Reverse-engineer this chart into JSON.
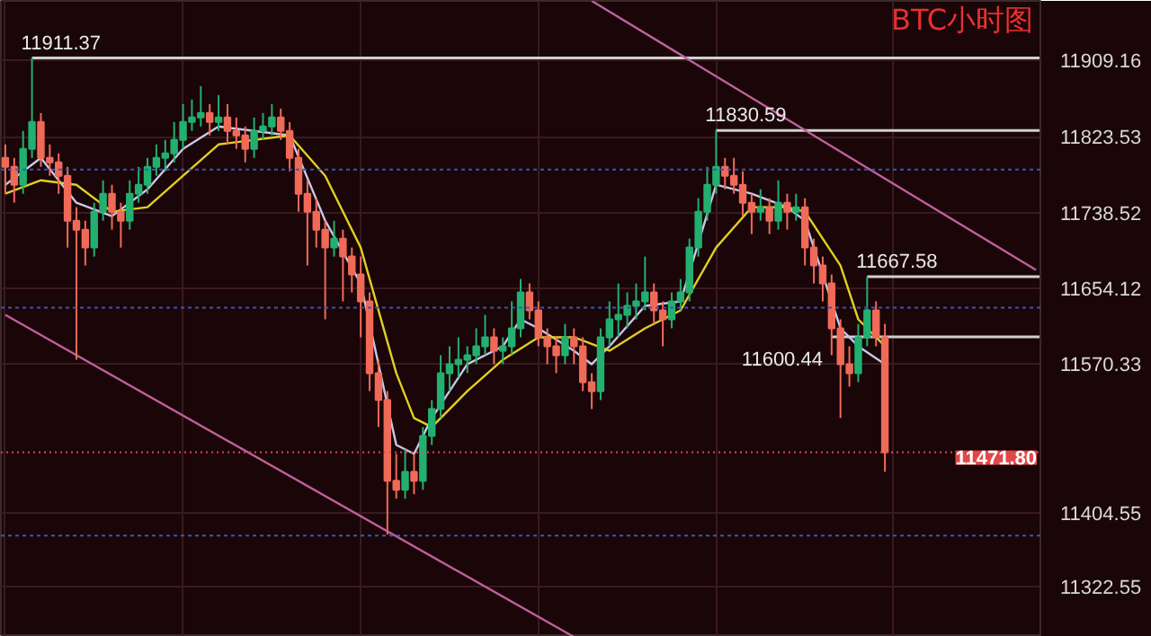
{
  "chart_data": {
    "type": "candlestick",
    "title": "BTC小时图",
    "categories": [
      null,
      null,
      null,
      null,
      null,
      null,
      null,
      null,
      null,
      null,
      null,
      null,
      null,
      null,
      null,
      null,
      null,
      null,
      null,
      null,
      null,
      null,
      null,
      null,
      null,
      null,
      null,
      null,
      null,
      null,
      null,
      null,
      null,
      null,
      null,
      null,
      null,
      null,
      null,
      null,
      null,
      null,
      null,
      null,
      null,
      null,
      null,
      null,
      null,
      null,
      null,
      null,
      null,
      null,
      null,
      null,
      null,
      null,
      null,
      null,
      null,
      null,
      null,
      null,
      null,
      null,
      null,
      null,
      null,
      null,
      null,
      null,
      null,
      null,
      null,
      null,
      null,
      null,
      null,
      null,
      null,
      null,
      null,
      null,
      null,
      null,
      null,
      null,
      null,
      null,
      null,
      null,
      null,
      null,
      null,
      null,
      null,
      null,
      null,
      null,
      null,
      null,
      null,
      null,
      null,
      null,
      null,
      null,
      null,
      null,
      null,
      null,
      null,
      null,
      null,
      null,
      null
    ],
    "ohlc": [
      [
        11800,
        11815,
        11760,
        11790
      ],
      [
        11790,
        11800,
        11750,
        11770
      ],
      [
        11770,
        11830,
        11760,
        11810
      ],
      [
        11810,
        11911.37,
        11800,
        11840
      ],
      [
        11840,
        11850,
        11790,
        11800
      ],
      [
        11800,
        11815,
        11780,
        11795
      ],
      [
        11795,
        11805,
        11760,
        11780
      ],
      [
        11780,
        11790,
        11700,
        11730
      ],
      [
        11730,
        11745,
        11575,
        11720
      ],
      [
        11720,
        11730,
        11680,
        11700
      ],
      [
        11700,
        11750,
        11690,
        11740
      ],
      [
        11740,
        11775,
        11730,
        11760
      ],
      [
        11760,
        11770,
        11720,
        11740
      ],
      [
        11740,
        11750,
        11700,
        11730
      ],
      [
        11730,
        11775,
        11720,
        11760
      ],
      [
        11760,
        11790,
        11750,
        11770
      ],
      [
        11770,
        11800,
        11760,
        11790
      ],
      [
        11790,
        11815,
        11780,
        11800
      ],
      [
        11800,
        11820,
        11785,
        11805
      ],
      [
        11805,
        11840,
        11795,
        11820
      ],
      [
        11820,
        11860,
        11810,
        11840
      ],
      [
        11840,
        11865,
        11830,
        11845
      ],
      [
        11845,
        11880,
        11835,
        11850
      ],
      [
        11850,
        11860,
        11825,
        11840
      ],
      [
        11840,
        11870,
        11830,
        11845
      ],
      [
        11845,
        11860,
        11815,
        11830
      ],
      [
        11830,
        11845,
        11810,
        11825
      ],
      [
        11825,
        11835,
        11795,
        11810
      ],
      [
        11810,
        11845,
        11800,
        11830
      ],
      [
        11830,
        11850,
        11820,
        11835
      ],
      [
        11835,
        11860,
        11825,
        11845
      ],
      [
        11845,
        11855,
        11820,
        11830
      ],
      [
        11830,
        11840,
        11785,
        11800
      ],
      [
        11800,
        11810,
        11740,
        11760
      ],
      [
        11760,
        11775,
        11680,
        11740
      ],
      [
        11740,
        11755,
        11700,
        11720
      ],
      [
        11720,
        11730,
        11620,
        11700
      ],
      [
        11700,
        11730,
        11690,
        11710
      ],
      [
        11710,
        11720,
        11640,
        11690
      ],
      [
        11690,
        11700,
        11650,
        11670
      ],
      [
        11670,
        11690,
        11600,
        11640
      ],
      [
        11640,
        11650,
        11540,
        11560
      ],
      [
        11560,
        11575,
        11500,
        11530
      ],
      [
        11530,
        11540,
        11380,
        11440
      ],
      [
        11440,
        11470,
        11420,
        11430
      ],
      [
        11430,
        11475,
        11420,
        11450
      ],
      [
        11450,
        11470,
        11425,
        11440
      ],
      [
        11440,
        11500,
        11430,
        11490
      ],
      [
        11490,
        11530,
        11480,
        11520
      ],
      [
        11520,
        11580,
        11510,
        11560
      ],
      [
        11560,
        11590,
        11540,
        11570
      ],
      [
        11570,
        11600,
        11555,
        11575
      ],
      [
        11575,
        11590,
        11560,
        11580
      ],
      [
        11580,
        11610,
        11570,
        11590
      ],
      [
        11590,
        11625,
        11580,
        11600
      ],
      [
        11600,
        11610,
        11570,
        11585
      ],
      [
        11585,
        11600,
        11570,
        11590
      ],
      [
        11590,
        11640,
        11580,
        11610
      ],
      [
        11610,
        11665,
        11600,
        11650
      ],
      [
        11650,
        11660,
        11620,
        11630
      ],
      [
        11630,
        11640,
        11590,
        11600
      ],
      [
        11600,
        11610,
        11570,
        11590
      ],
      [
        11590,
        11600,
        11560,
        11580
      ],
      [
        11580,
        11615,
        11570,
        11600
      ],
      [
        11600,
        11610,
        11570,
        11590
      ],
      [
        11590,
        11600,
        11540,
        11550
      ],
      [
        11550,
        11560,
        11520,
        11540
      ],
      [
        11540,
        11610,
        11530,
        11600
      ],
      [
        11600,
        11640,
        11590,
        11620
      ],
      [
        11620,
        11660,
        11600,
        11625
      ],
      [
        11625,
        11650,
        11610,
        11635
      ],
      [
        11635,
        11660,
        11620,
        11640
      ],
      [
        11640,
        11690,
        11630,
        11650
      ],
      [
        11650,
        11660,
        11615,
        11630
      ],
      [
        11630,
        11640,
        11590,
        11620
      ],
      [
        11620,
        11650,
        11610,
        11640
      ],
      [
        11640,
        11665,
        11630,
        11650
      ],
      [
        11650,
        11710,
        11640,
        11700
      ],
      [
        11700,
        11755,
        11690,
        11740
      ],
      [
        11740,
        11790,
        11730,
        11770
      ],
      [
        11770,
        11830.59,
        11760,
        11790
      ],
      [
        11790,
        11800,
        11765,
        11780
      ],
      [
        11780,
        11800,
        11760,
        11770
      ],
      [
        11770,
        11785,
        11735,
        11750
      ],
      [
        11750,
        11760,
        11715,
        11740
      ],
      [
        11740,
        11765,
        11730,
        11745
      ],
      [
        11745,
        11755,
        11715,
        11730
      ],
      [
        11730,
        11775,
        11720,
        11750
      ],
      [
        11750,
        11760,
        11720,
        11740
      ],
      [
        11740,
        11760,
        11730,
        11745
      ],
      [
        11745,
        11755,
        11680,
        11700
      ],
      [
        11700,
        11710,
        11660,
        11680
      ],
      [
        11680,
        11690,
        11640,
        11660
      ],
      [
        11660,
        11670,
        11580,
        11610
      ],
      [
        11610,
        11620,
        11510,
        11570
      ],
      [
        11570,
        11590,
        11545,
        11560
      ],
      [
        11560,
        11615,
        11550,
        11600
      ],
      [
        11600,
        11667.58,
        11590,
        11630
      ],
      [
        11630,
        11640,
        11590,
        11600
      ],
      [
        11600,
        11615,
        11450,
        11471.8
      ],
      null,
      null,
      null,
      null,
      null,
      null,
      null,
      null,
      null,
      null,
      null,
      null,
      null,
      null,
      null,
      null,
      null
    ],
    "series": [
      {
        "type": "line",
        "color": "#c8c8e8",
        "values": [
          11770,
          null,
          null,
          null,
          11800,
          null,
          null,
          null,
          11750,
          null,
          null,
          null,
          11735,
          null,
          null,
          null,
          11765,
          null,
          null,
          null,
          11810,
          null,
          null,
          null,
          11835,
          null,
          null,
          null,
          11830,
          null,
          null,
          null,
          11825,
          null,
          null,
          null,
          11730,
          null,
          null,
          null,
          11660,
          null,
          null,
          null,
          11480,
          null,
          11470,
          null,
          11510,
          null,
          null,
          null,
          11570,
          null,
          null,
          null,
          11590,
          null,
          11620,
          null,
          11610,
          null,
          null,
          null,
          11585,
          null,
          11570,
          null,
          11590,
          null,
          null,
          null,
          11635,
          null,
          null,
          null,
          11640,
          null,
          null,
          null,
          11770,
          null,
          null,
          null,
          11760,
          null,
          null,
          null,
          11745,
          null,
          11730,
          null,
          null,
          null,
          11610,
          null,
          11590,
          null,
          null,
          11570,
          null,
          null,
          null,
          null,
          null,
          null,
          null,
          null,
          null,
          null,
          null,
          null,
          null,
          null,
          null,
          null,
          null
        ]
      },
      {
        "type": "line",
        "color": "#e0d020",
        "values": [
          11760,
          null,
          null,
          null,
          11775,
          null,
          null,
          null,
          11770,
          null,
          null,
          null,
          11740,
          null,
          null,
          null,
          11745,
          null,
          null,
          null,
          11780,
          null,
          null,
          null,
          11815,
          null,
          null,
          null,
          11820,
          null,
          null,
          null,
          11825,
          null,
          null,
          null,
          11780,
          null,
          null,
          null,
          11700,
          null,
          null,
          null,
          11560,
          null,
          11510,
          null,
          11500,
          null,
          null,
          null,
          11540,
          null,
          null,
          null,
          11575,
          null,
          null,
          null,
          11600,
          null,
          null,
          null,
          11600,
          null,
          null,
          null,
          11585,
          null,
          null,
          null,
          11610,
          null,
          null,
          null,
          11630,
          null,
          null,
          null,
          11700,
          null,
          null,
          null,
          11745,
          null,
          null,
          null,
          11745,
          null,
          11740,
          null,
          null,
          null,
          11680,
          null,
          11620,
          null,
          null,
          11590,
          null,
          null,
          null,
          null,
          null,
          null,
          null,
          null,
          null,
          null,
          null,
          null,
          null,
          null,
          null,
          null,
          null
        ]
      },
      {
        "type": "line",
        "color": "#c0609c",
        "values": [
          null,
          null,
          null,
          null,
          null,
          null,
          null,
          null,
          null,
          null,
          null,
          null,
          null,
          null,
          null,
          null,
          null,
          null,
          null,
          null,
          null,
          null,
          null,
          null,
          null,
          null,
          null,
          null,
          null,
          null,
          null,
          null,
          null,
          null,
          null,
          null,
          null,
          null,
          null,
          null,
          null,
          null,
          null,
          null,
          null,
          null,
          null,
          null,
          null,
          null,
          null,
          null,
          null,
          null,
          null,
          null,
          null,
          null,
          null,
          null,
          null,
          null,
          null,
          null,
          null,
          null,
          11975,
          null,
          null,
          null,
          null,
          null,
          null,
          null,
          null,
          null,
          null,
          null,
          null,
          null,
          null,
          null,
          null,
          null,
          null,
          null,
          null,
          null,
          null,
          null,
          null,
          null,
          null,
          null,
          null,
          null,
          null,
          null,
          null,
          null,
          null,
          null,
          null,
          null,
          null,
          null,
          null,
          null,
          null,
          null,
          null,
          null,
          null,
          null,
          null,
          null,
          11675
        ]
      },
      {
        "type": "line",
        "color": "#c0609c",
        "values": [
          11625,
          null,
          null,
          null,
          null,
          null,
          null,
          null,
          null,
          null,
          null,
          null,
          null,
          null,
          null,
          null,
          null,
          null,
          null,
          null,
          null,
          null,
          null,
          null,
          null,
          null,
          null,
          null,
          null,
          null,
          null,
          null,
          null,
          null,
          null,
          null,
          null,
          null,
          null,
          null,
          null,
          null,
          null,
          null,
          null,
          null,
          null,
          null,
          null,
          null,
          null,
          null,
          null,
          null,
          null,
          null,
          null,
          null,
          null,
          null,
          null,
          null,
          null,
          null,
          11266,
          null,
          null,
          null,
          null,
          null,
          null,
          null,
          null,
          null,
          null,
          null,
          null,
          null,
          null,
          null,
          null,
          null,
          null,
          null,
          null,
          null,
          null,
          null,
          null,
          null,
          null,
          null,
          null,
          null,
          null,
          null,
          null,
          null,
          null,
          null,
          null,
          null,
          null,
          null,
          null,
          null,
          null,
          null,
          null,
          null,
          null,
          null,
          null,
          null,
          null,
          null,
          null
        ]
      }
    ],
    "ylim": [
      11266,
      11975
    ],
    "yticks": [
      11322.55,
      11404.55,
      11570.33,
      11654.12,
      11738.52,
      11823.53,
      11909.16
    ],
    "grid": true,
    "ref_lines": [
      {
        "axis": "y",
        "value": 11787,
        "color": "#3858b0",
        "line_style": "dashed",
        "label": null
      },
      {
        "axis": "y",
        "value": 11633,
        "color": "#3858b0",
        "line_style": "dashed",
        "label": null
      },
      {
        "axis": "y",
        "value": 11379,
        "color": "#3858b0",
        "line_style": "dashed",
        "label": null
      },
      {
        "axis": "y",
        "value": 11471.8,
        "color": "#e04848",
        "line_style": "dotted",
        "label": "11471.80"
      },
      {
        "axis": "y",
        "value": 11911.37,
        "color": "#d0d0d0",
        "line_style": "solid",
        "label": "11911.37"
      },
      {
        "axis": "y",
        "value": 11830.59,
        "color": "#d0d0d0",
        "line_style": "solid",
        "label": "11830.59"
      },
      {
        "axis": "y",
        "value": 11667.58,
        "color": "#d0d0d0",
        "line_style": "solid",
        "label": "11667.58"
      },
      {
        "axis": "y",
        "value": 11600.44,
        "color": "#d0d0d0",
        "line_style": "solid",
        "label": "11600.44"
      }
    ]
  }
}
